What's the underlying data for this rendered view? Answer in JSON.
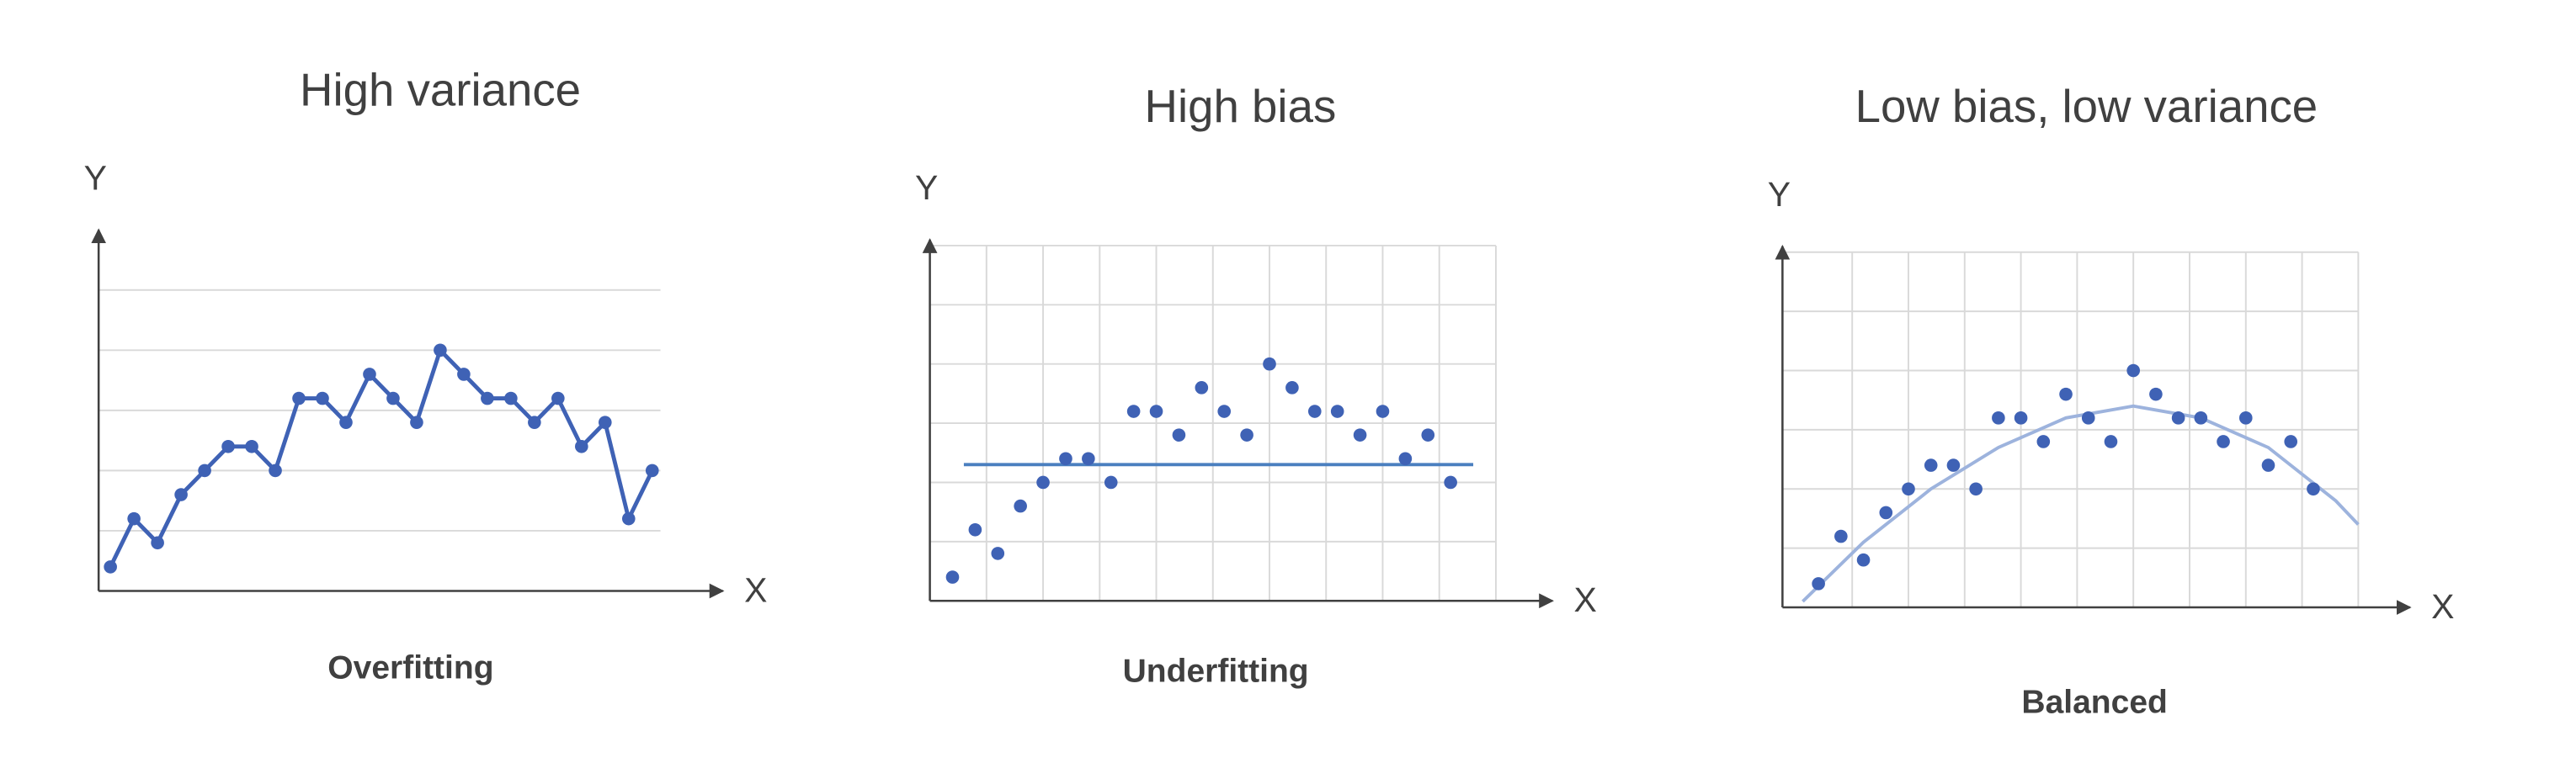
{
  "chart_data": [
    {
      "type": "line",
      "title": "High variance",
      "x_label": "X",
      "y_label": "Y",
      "caption": "Overfitting",
      "x": [
        1,
        2,
        3,
        4,
        5,
        6,
        7,
        8,
        9,
        10,
        11,
        12,
        13,
        14,
        15,
        16,
        17,
        18,
        19,
        20,
        21,
        22,
        23,
        24
      ],
      "values": [
        0.4,
        1.2,
        0.8,
        1.6,
        2.0,
        2.4,
        2.4,
        2.0,
        3.2,
        3.2,
        2.8,
        3.6,
        3.2,
        2.8,
        4.0,
        3.6,
        3.2,
        3.2,
        2.8,
        3.2,
        2.4,
        2.8,
        1.2,
        2.0
      ],
      "color": "#3f62b5",
      "xlim": [
        0.5,
        27
      ],
      "ylim": [
        0,
        6
      ],
      "yticks": [
        1,
        2,
        3,
        4,
        5
      ],
      "grid": true
    },
    {
      "type": "scatter",
      "title": "High bias",
      "x_label": "X",
      "y_label": "Y",
      "caption": "Underfitting",
      "x": [
        1,
        2,
        3,
        4,
        5,
        6,
        7,
        8,
        9,
        10,
        11,
        12,
        13,
        14,
        15,
        16,
        17,
        18,
        19,
        20,
        21,
        22,
        23
      ],
      "values": [
        0.4,
        1.2,
        0.8,
        1.6,
        2.0,
        2.4,
        2.4,
        2.0,
        3.2,
        3.2,
        2.8,
        3.6,
        3.2,
        2.8,
        4.0,
        3.6,
        3.2,
        3.2,
        2.8,
        3.2,
        2.4,
        2.8,
        2.0
      ],
      "color": "#3f62b5",
      "fit_x": [
        1.5,
        24
      ],
      "fit_values": [
        2.3,
        2.3
      ],
      "fit_color": "#4a7fbf",
      "xlim": [
        0,
        27.5
      ],
      "ylim": [
        0,
        6.1
      ],
      "xticks": [
        2.5,
        5,
        7.5,
        10,
        12.5,
        15,
        17.5,
        20,
        22.5,
        25
      ],
      "yticks": [
        1,
        2,
        3,
        4,
        5,
        6
      ],
      "grid": true
    },
    {
      "type": "scatter",
      "title": "Low bias, low variance",
      "x_label": "X",
      "y_label": "Y",
      "caption": "Balanced",
      "x": [
        1,
        2,
        3,
        4,
        5,
        6,
        7,
        8,
        9,
        10,
        11,
        12,
        13,
        14,
        15,
        16,
        17,
        18,
        19,
        20,
        21,
        22,
        23
      ],
      "values": [
        0.4,
        1.2,
        0.8,
        1.6,
        2.0,
        2.4,
        2.4,
        2.0,
        3.2,
        3.2,
        2.8,
        3.6,
        3.2,
        2.8,
        4.0,
        3.6,
        3.2,
        3.2,
        2.8,
        3.2,
        2.4,
        2.8,
        2.0
      ],
      "color": "#3f62b5",
      "fit_x": [
        0.3,
        3,
        6,
        9,
        12,
        15,
        18,
        21,
        24,
        25
      ],
      "fit_values": [
        0.1,
        1.1,
        2.0,
        2.7,
        3.2,
        3.4,
        3.2,
        2.7,
        1.8,
        1.4
      ],
      "fit_color": "#9db3dd",
      "xlim": [
        -0.6,
        27.3
      ],
      "ylim": [
        0,
        6.1
      ],
      "xticks": [
        2.5,
        5,
        7.5,
        10,
        12.5,
        15,
        17.5,
        20,
        22.5,
        25
      ],
      "yticks": [
        1,
        2,
        3,
        4,
        5,
        6
      ],
      "grid": true
    }
  ]
}
